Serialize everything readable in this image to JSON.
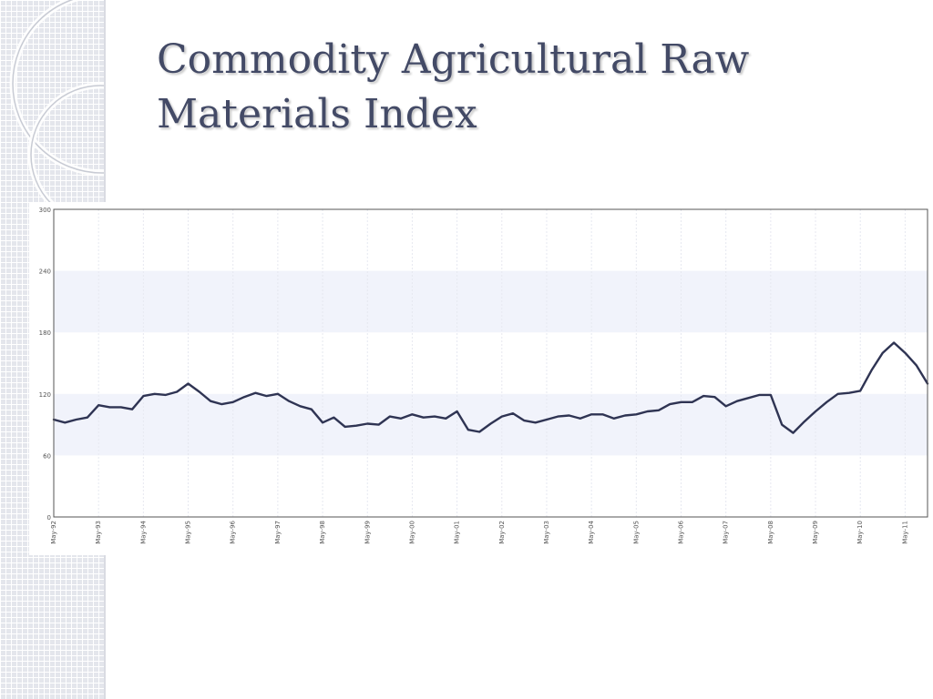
{
  "slide": {
    "title": "Commodity Agricultural Raw Materials Index"
  },
  "colors": {
    "title": "#434a66",
    "series_line": "#2f3453",
    "band_fill": "#f1f3fb",
    "grid": "#e6e8f0"
  },
  "chart_data": {
    "type": "line",
    "title": "Commodity Agricultural Raw Materials Index",
    "xlabel": "",
    "ylabel": "",
    "ylim": [
      0,
      300
    ],
    "yticks": [
      0,
      60,
      120,
      180,
      240,
      300
    ],
    "grid": true,
    "legend": "none",
    "x_tick_labels": [
      "May-92",
      "May-93",
      "May-94",
      "May-95",
      "May-96",
      "May-97",
      "May-98",
      "May-99",
      "May-00",
      "May-01",
      "May-02",
      "May-03",
      "May-04",
      "May-05",
      "May-06",
      "May-07",
      "May-08",
      "May-09",
      "May-10",
      "May-11"
    ],
    "series": [
      {
        "x": [
          "1992-05",
          "1992-08",
          "1992-11",
          "1993-02",
          "1993-05",
          "1993-08",
          "1993-11",
          "1994-02",
          "1994-05",
          "1994-08",
          "1994-11",
          "1995-02",
          "1995-05",
          "1995-08",
          "1995-11",
          "1996-02",
          "1996-05",
          "1996-08",
          "1996-11",
          "1997-02",
          "1997-05",
          "1997-08",
          "1997-11",
          "1998-02",
          "1998-05",
          "1998-08",
          "1998-11",
          "1999-02",
          "1999-05",
          "1999-08",
          "1999-11",
          "2000-02",
          "2000-05",
          "2000-08",
          "2000-11",
          "2001-02",
          "2001-05",
          "2001-08",
          "2001-11",
          "2002-02",
          "2002-05",
          "2002-08",
          "2002-11",
          "2003-02",
          "2003-05",
          "2003-08",
          "2003-11",
          "2004-02",
          "2004-05",
          "2004-08",
          "2004-11",
          "2005-02",
          "2005-05",
          "2005-08",
          "2005-11",
          "2006-02",
          "2006-05",
          "2006-08",
          "2006-11",
          "2007-02",
          "2007-05",
          "2007-08",
          "2007-11",
          "2008-02",
          "2008-05",
          "2008-08",
          "2008-11",
          "2009-02",
          "2009-05",
          "2009-08",
          "2009-11",
          "2010-02",
          "2010-05",
          "2010-08",
          "2010-11",
          "2011-02",
          "2011-05",
          "2011-08",
          "2011-11"
        ],
        "values": [
          95,
          92,
          95,
          97,
          109,
          107,
          107,
          105,
          118,
          120,
          119,
          122,
          130,
          122,
          113,
          110,
          112,
          117,
          121,
          118,
          120,
          113,
          108,
          105,
          92,
          97,
          88,
          89,
          91,
          90,
          98,
          96,
          100,
          97,
          98,
          96,
          103,
          85,
          83,
          91,
          98,
          101,
          94,
          92,
          95,
          98,
          99,
          96,
          100,
          100,
          96,
          99,
          100,
          103,
          104,
          110,
          112,
          112,
          118,
          117,
          108,
          113,
          116,
          119,
          119,
          90,
          82,
          93,
          103,
          112,
          120,
          121,
          123,
          143,
          160,
          170,
          160,
          148,
          130
        ]
      }
    ]
  }
}
